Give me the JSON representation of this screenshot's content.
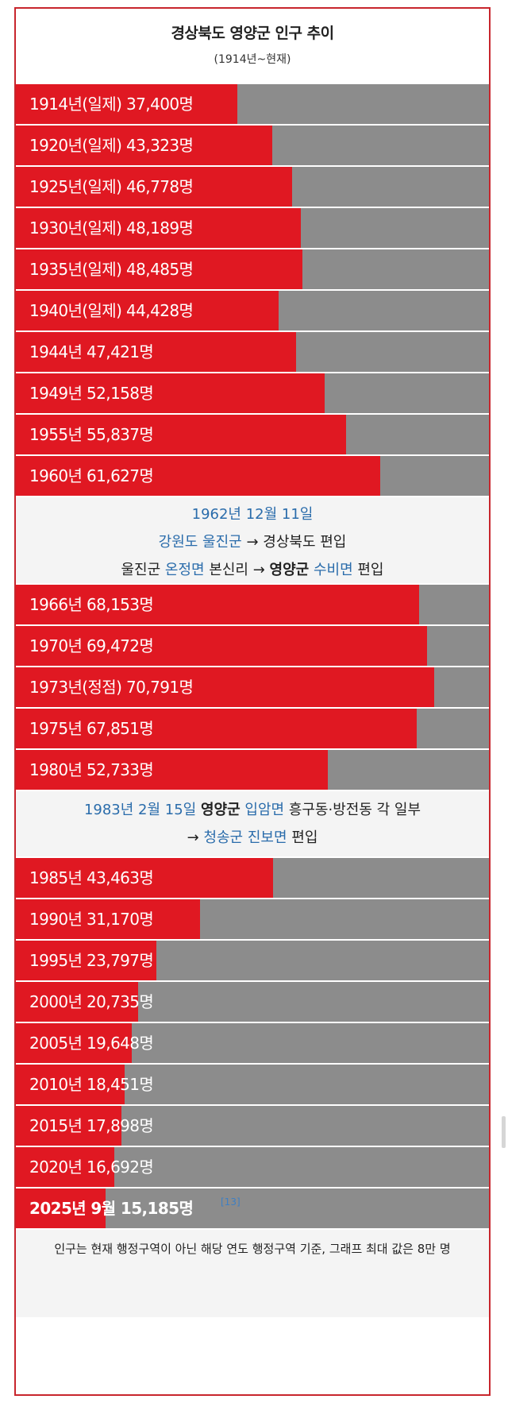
{
  "colors": {
    "bar": "#e01822",
    "track": "#8c8c8c",
    "border": "#c8262d",
    "note_bg": "#f4f4f4",
    "link_blue": "#2a6cab"
  },
  "title": "경상북도 영양군 인구 추이",
  "subtitle": "(1914년~현재)",
  "chart_data": {
    "type": "bar",
    "orientation": "horizontal",
    "max": 80000,
    "title": "경상북도 영양군 인구 추이",
    "subtitle": "(1914년~현재)",
    "groups": [
      {
        "rows": [
          {
            "label": "1914년(일제) 37,400명",
            "value": 37400
          },
          {
            "label": "1920년(일제) 43,323명",
            "value": 43323
          },
          {
            "label": "1925년(일제) 46,778명",
            "value": 46778
          },
          {
            "label": "1930년(일제) 48,189명",
            "value": 48189
          },
          {
            "label": "1935년(일제) 48,485명",
            "value": 48485
          },
          {
            "label": "1940년(일제) 44,428명",
            "value": 44428
          },
          {
            "label": "1944년 47,421명",
            "value": 47421
          },
          {
            "label": "1949년 52,158명",
            "value": 52158
          },
          {
            "label": "1955년 55,837명",
            "value": 55837
          },
          {
            "label": "1960년 61,627명",
            "value": 61627
          }
        ]
      },
      {
        "rows": [
          {
            "label": "1966년 68,153명",
            "value": 68153
          },
          {
            "label": "1970년 69,472명",
            "value": 69472
          },
          {
            "label": "1973년(정점) 70,791명",
            "value": 70791
          },
          {
            "label": "1975년 67,851명",
            "value": 67851
          },
          {
            "label": "1980년 52,733명",
            "value": 52733
          }
        ]
      },
      {
        "rows": [
          {
            "label": "1985년 43,463명",
            "value": 43463
          },
          {
            "label": "1990년 31,170명",
            "value": 31170
          },
          {
            "label": "1995년 23,797명",
            "value": 23797
          },
          {
            "label": "2000년 20,735명",
            "value": 20735
          },
          {
            "label": "2005년 19,648명",
            "value": 19648
          },
          {
            "label": "2010년 18,451명",
            "value": 18451
          },
          {
            "label": "2015년 17,898명",
            "value": 17898
          },
          {
            "label": "2020년 16,692명",
            "value": 16692
          },
          {
            "label": "2025년 9월 15,185명",
            "value": 15185,
            "bold": true,
            "ref": "[13]"
          }
        ]
      }
    ]
  },
  "note1": {
    "line1": "1962년 12월 11일",
    "line2_a": "강원도 울진군",
    "line2_b": " → 경상북도 편입",
    "line3_a": "울진군 ",
    "line3_b": "온정면",
    "line3_c": " 본신리 → ",
    "line3_d": "영양군",
    "line3_e": " ",
    "line3_f": "수비면",
    "line3_g": " 편입"
  },
  "note2": {
    "line1_a": "1983년 2월 15일",
    "line1_b": " ",
    "line1_c": "영양군",
    "line1_d": " ",
    "line1_e": "입암면",
    "line1_f": " 흥구동·방전동 각 일부",
    "line2_a": "→ ",
    "line2_b": "청송군 진보면",
    "line2_c": " 편입"
  },
  "footer": "인구는 현재 행정구역이 아닌 해당 연도 행정구역 기준, 그래프 최대 값은 8만 명"
}
